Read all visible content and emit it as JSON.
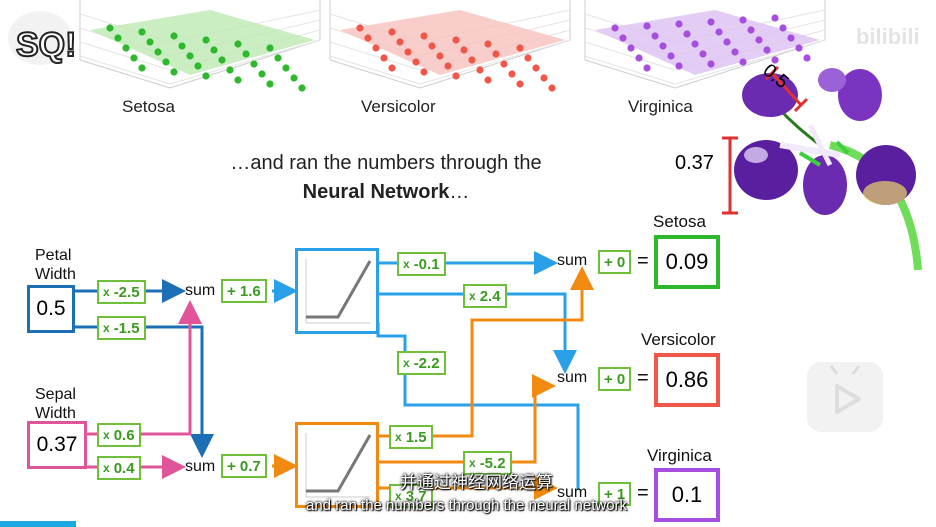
{
  "plots": [
    {
      "label": "Setosa",
      "color": "#2db82d",
      "fill": "#bde8b3"
    },
    {
      "label": "Versicolor",
      "color": "#f0564a",
      "fill": "#f8c2bd"
    },
    {
      "label": "Virginica",
      "color": "#a54ee0",
      "fill": "#dcc0f2"
    }
  ],
  "headline": {
    "line1": "…and ran the numbers through the",
    "line2_bold": "Neural Network",
    "line2_rest": "…"
  },
  "measure": {
    "petal_value": "0.5",
    "sepal_value": "0.37"
  },
  "inputs": [
    {
      "label_line1": "Petal",
      "label_line2": "Width",
      "value": "0.5",
      "color": "#1c6fb5"
    },
    {
      "label_line1": "Sepal",
      "label_line2": "Width",
      "value": "0.37",
      "color": "#e0559a"
    }
  ],
  "weights": {
    "w_p_top": "-2.5",
    "w_p_bot": "-1.5",
    "w_s_top": "0.6",
    "w_s_bot": "0.4",
    "h1_to_set": "-0.1",
    "h1_to_ver": "2.4",
    "h1_to_vir": "-2.2",
    "h2_to_set": "1.5",
    "h2_to_ver": "-5.2",
    "h2_to_vir": "3.7"
  },
  "weight_prefix": "x",
  "sum_label": "sum",
  "biases": {
    "b1": "+ 1.6",
    "b2": "+ 0.7",
    "o_set": "+ 0",
    "o_ver": "+ 0",
    "o_vir": "+ 1"
  },
  "equals": "=",
  "outputs": [
    {
      "label": "Setosa",
      "value": "0.09",
      "color": "#2db82d"
    },
    {
      "label": "Versicolor",
      "value": "0.86",
      "color": "#f0564a"
    },
    {
      "label": "Virginica",
      "value": "0.1",
      "color": "#a54ee0"
    }
  ],
  "subtitles": {
    "zh": "并通过神经网络运算",
    "en": "and ran the numbers through the neural network"
  },
  "watermark": "bilibili",
  "logo_text": "SQ!"
}
